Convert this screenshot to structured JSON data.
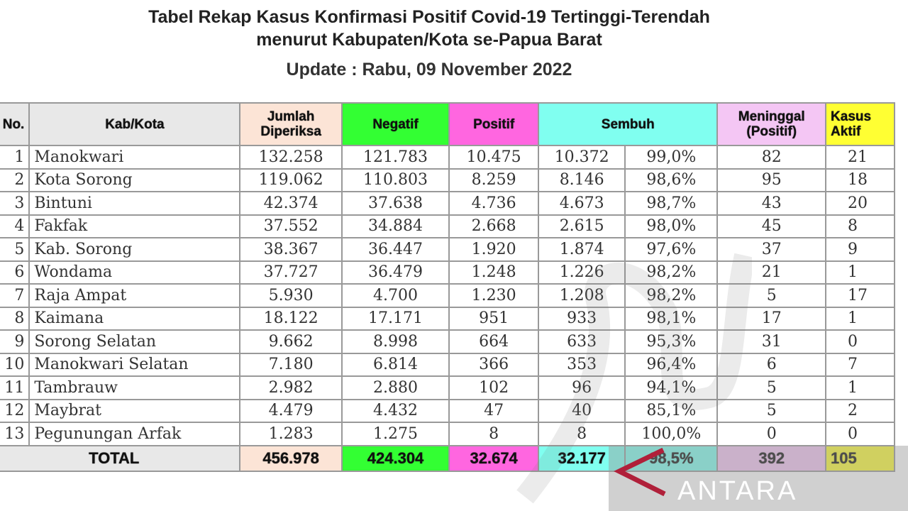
{
  "title_line1": "Tabel Rekap Kasus Konfirmasi Positif Covid-19 Tertinggi-Terendah",
  "title_line2": "menurut Kabupaten/Kota se-Papua Barat",
  "update": "Update : Rabu, 09 November 2022",
  "headers": {
    "no": "No.",
    "kab": "Kab/Kota",
    "jumlah": "Jumlah Diperiksa",
    "negatif": "Negatif",
    "positif": "Positif",
    "sembuh": "Sembuh",
    "meninggal": "Meninggal (Positif)",
    "aktif": "Kasus Aktif"
  },
  "colors": {
    "jumlah": "#fce4d6",
    "negatif": "#33ff33",
    "positif": "#ff66e0",
    "sembuh": "#80fff0",
    "meninggal": "#f4c6f4",
    "aktif": "#ffff33"
  },
  "rows": [
    [
      "1",
      "Manokwari",
      "132.258",
      "121.783",
      "10.475",
      "10.372",
      "99,0%",
      "82",
      "21"
    ],
    [
      "2",
      "Kota Sorong",
      "119.062",
      "110.803",
      "8.259",
      "8.146",
      "98,6%",
      "95",
      "18"
    ],
    [
      "3",
      "Bintuni",
      "42.374",
      "37.638",
      "4.736",
      "4.673",
      "98,7%",
      "43",
      "20"
    ],
    [
      "4",
      "Fakfak",
      "37.552",
      "34.884",
      "2.668",
      "2.615",
      "98,0%",
      "45",
      "8"
    ],
    [
      "5",
      "Kab. Sorong",
      "38.367",
      "36.447",
      "1.920",
      "1.874",
      "97,6%",
      "37",
      "9"
    ],
    [
      "6",
      "Wondama",
      "37.727",
      "36.479",
      "1.248",
      "1.226",
      "98,2%",
      "21",
      "1"
    ],
    [
      "7",
      "Raja Ampat",
      "5.930",
      "4.700",
      "1.230",
      "1.208",
      "98,2%",
      "5",
      "17"
    ],
    [
      "8",
      "Kaimana",
      "18.122",
      "17.171",
      "951",
      "933",
      "98,1%",
      "17",
      "1"
    ],
    [
      "9",
      "Sorong Selatan",
      "9.662",
      "8.998",
      "664",
      "633",
      "95,3%",
      "31",
      "0"
    ],
    [
      "10",
      "Manokwari Selatan",
      "7.180",
      "6.814",
      "366",
      "353",
      "96,4%",
      "6",
      "7"
    ],
    [
      "11",
      "Tambrauw",
      "2.982",
      "2.880",
      "102",
      "96",
      "94,1%",
      "5",
      "1"
    ],
    [
      "12",
      "Maybrat",
      "4.479",
      "4.432",
      "47",
      "40",
      "85,1%",
      "5",
      "2"
    ],
    [
      "13",
      "Pegunungan Arfak",
      "1.283",
      "1.275",
      "8",
      "8",
      "100,0%",
      "0",
      "0"
    ]
  ],
  "total": {
    "label": "TOTAL",
    "jumlah": "456.978",
    "negatif": "424.304",
    "positif": "32.674",
    "sembuh": "32.177",
    "persen": "98,5%",
    "meninggal": "392",
    "aktif": "105"
  },
  "watermark": "ANTARA"
}
